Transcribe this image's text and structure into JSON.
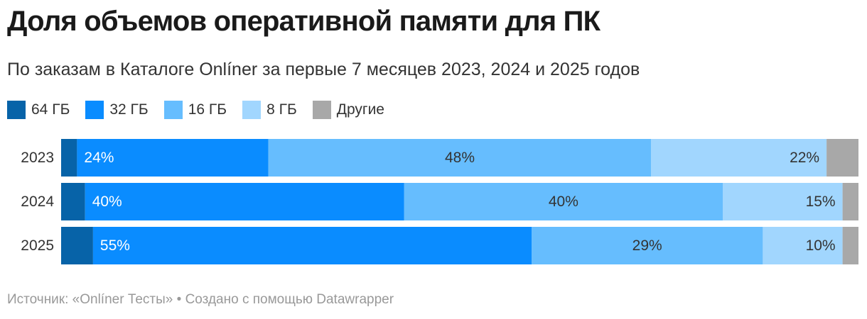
{
  "title": "Доля объемов оперативной памяти для ПК",
  "subtitle": "По заказам в Каталоге Onlíner за первые 7 месяцев 2023, 2024 и 2025 годов",
  "footer": {
    "source": "Источник: «Onlíner Тесты»",
    "separator": "•",
    "credit": "Создано с помощью Datawrapper"
  },
  "colors": {
    "64gb": "#0763a8",
    "32gb": "#0a8cff",
    "16gb": "#66bdfe",
    "8gb": "#a1d6fe",
    "other": "#a8a8a8"
  },
  "chart_data": {
    "type": "bar",
    "orientation": "horizontal",
    "stacked": true,
    "normalized": true,
    "categories": [
      "2023",
      "2024",
      "2025"
    ],
    "series": [
      {
        "name": "64 ГБ",
        "color": "#0763a8",
        "values": [
          2,
          3,
          4
        ],
        "labels": [
          "",
          "",
          ""
        ]
      },
      {
        "name": "32 ГБ",
        "color": "#0a8cff",
        "values": [
          24,
          40,
          55
        ],
        "labels": [
          "24%",
          "40%",
          "55%"
        ]
      },
      {
        "name": "16 ГБ",
        "color": "#66bdfe",
        "values": [
          48,
          40,
          29
        ],
        "labels": [
          "48%",
          "40%",
          "29%"
        ]
      },
      {
        "name": "8 ГБ",
        "color": "#a1d6fe",
        "values": [
          22,
          15,
          10
        ],
        "labels": [
          "22%",
          "15%",
          "10%"
        ]
      },
      {
        "name": "Другие",
        "color": "#a8a8a8",
        "values": [
          4,
          2,
          2
        ],
        "labels": [
          "",
          "",
          ""
        ]
      }
    ],
    "xlim": [
      0,
      100
    ],
    "grid": false,
    "legend_position": "top-left"
  }
}
